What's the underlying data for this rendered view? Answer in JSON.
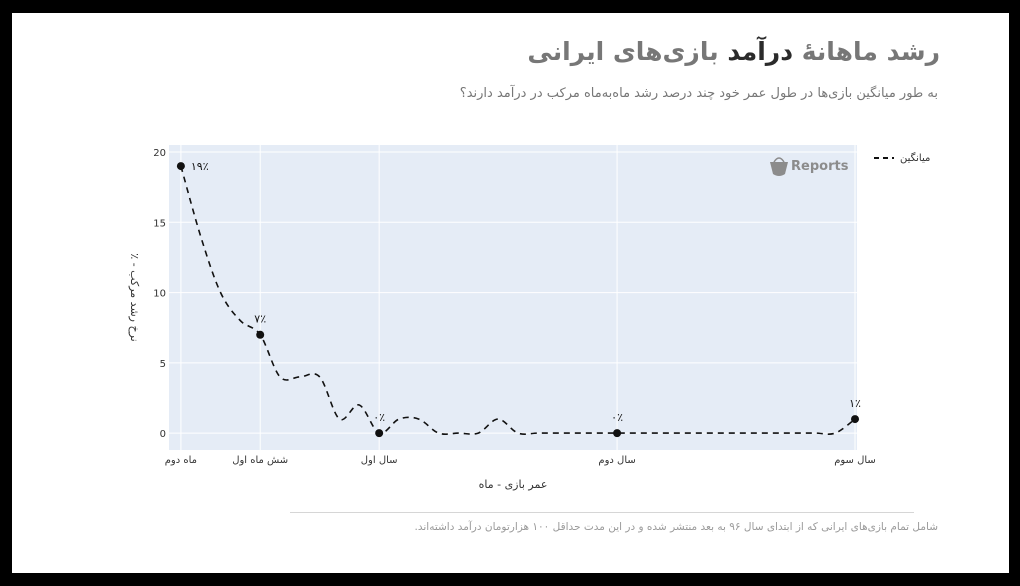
{
  "header": {
    "title_part1": "رشد ماهانهٔ ",
    "title_highlight": "درآمد",
    "title_part2": " بازی‌های ایرانی",
    "subtitle": "به طور میانگین بازی‌ها در طول عمر خود چند درصد رشد ماه‌به‌ماه مرکب در درآمد دارند؟"
  },
  "footer": {
    "note": "شامل تمام بازی‌های ایرانی که از ابتدای سال ۹۶ به بعد منتشر شده و در این مدت حداقل ۱۰۰ هزارتومان درآمد داشته‌اند."
  },
  "watermark": {
    "text": "Reports",
    "icon": "bag-icon"
  },
  "colors": {
    "plot_bg": "#e5ecf6",
    "grid": "#ffffff",
    "line": "#111111",
    "title_gray": "#777777",
    "title_dark": "#2b2b2b"
  },
  "chart_data": {
    "type": "line",
    "xlabel": "عمر بازی - ماه",
    "ylabel": "٪ - نرخ رشد مرکب",
    "xlim": [
      1.4,
      36.1
    ],
    "ylim": [
      -1.2,
      20.5
    ],
    "grid": true,
    "legend_position": "top-right",
    "y_ticks": [
      0,
      5,
      10,
      15,
      20
    ],
    "x_ticks": [
      {
        "x": 2,
        "label": "ماه دوم"
      },
      {
        "x": 6,
        "label": "شش ماه اول"
      },
      {
        "x": 12,
        "label": "سال اول"
      },
      {
        "x": 24,
        "label": "سال دوم"
      },
      {
        "x": 36,
        "label": "سال سوم"
      }
    ],
    "series": [
      {
        "name": "میانگین",
        "line_style": "dashed",
        "x": [
          2,
          3,
          4,
          5,
          6,
          7,
          8,
          9,
          10,
          11,
          12,
          13,
          14,
          15,
          16,
          17,
          18,
          19,
          20,
          21,
          22,
          23,
          24,
          25,
          26,
          27,
          28,
          29,
          30,
          31,
          32,
          33,
          34,
          35,
          36
        ],
        "y": [
          19,
          14,
          10,
          8,
          7,
          4,
          4,
          4,
          1,
          2,
          0,
          1,
          1,
          0,
          0,
          0,
          1,
          0,
          0,
          0,
          0,
          0,
          0,
          0,
          0,
          0,
          0,
          0,
          0,
          0,
          0,
          0,
          0,
          0,
          1
        ]
      }
    ],
    "marked_points": [
      {
        "x": 2,
        "y": 19,
        "label": "۱۹٪"
      },
      {
        "x": 6,
        "y": 7,
        "label": "۷٪"
      },
      {
        "x": 12,
        "y": 0,
        "label": "۰٪"
      },
      {
        "x": 24,
        "y": 0,
        "label": "۰٪"
      },
      {
        "x": 36,
        "y": 1,
        "label": "۱٪"
      }
    ]
  }
}
